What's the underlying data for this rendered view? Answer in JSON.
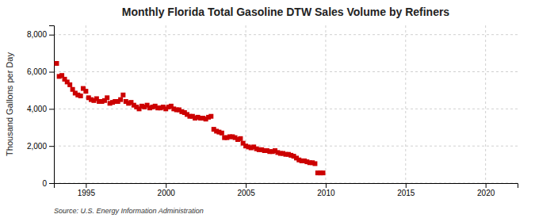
{
  "chart_data": {
    "type": "scatter",
    "title": "Monthly Florida Total Gasoline DTW Sales Volume by Refiners",
    "ylabel": "Thousand Gallons per Day",
    "annotations": [
      "Source: U.S. Energy Information Administration"
    ],
    "color": "#cc0000",
    "marker": "square",
    "grid": true,
    "xlim": [
      1993.0,
      2022.0
    ],
    "ylim": [
      0,
      8500
    ],
    "xticks": [
      1995,
      2000,
      2005,
      2010,
      2015,
      2020
    ],
    "yticks": [
      0,
      {
        "value": 2000,
        "label": "2,000"
      },
      {
        "value": 4000,
        "label": "4,000"
      },
      {
        "value": 6000,
        "label": "6,000"
      },
      {
        "value": 8000,
        "label": "8,000"
      }
    ],
    "x": [
      1993.17,
      1993.33,
      1993.5,
      1993.67,
      1993.83,
      1994.0,
      1994.17,
      1994.33,
      1994.5,
      1994.67,
      1994.83,
      1995.0,
      1995.17,
      1995.33,
      1995.5,
      1995.67,
      1995.83,
      1996.0,
      1996.17,
      1996.33,
      1996.5,
      1996.67,
      1996.83,
      1997.0,
      1997.17,
      1997.33,
      1997.5,
      1997.67,
      1997.83,
      1998.0,
      1998.17,
      1998.33,
      1998.5,
      1998.67,
      1998.83,
      1999.0,
      1999.17,
      1999.33,
      1999.5,
      1999.67,
      1999.83,
      2000.0,
      2000.17,
      2000.33,
      2000.5,
      2000.67,
      2000.83,
      2001.0,
      2001.17,
      2001.33,
      2001.5,
      2001.67,
      2001.83,
      2002.0,
      2002.17,
      2002.33,
      2002.5,
      2002.67,
      2002.83,
      2003.0,
      2003.17,
      2003.33,
      2003.5,
      2003.67,
      2003.83,
      2004.0,
      2004.17,
      2004.33,
      2004.5,
      2004.67,
      2004.83,
      2005.0,
      2005.17,
      2005.33,
      2005.5,
      2005.67,
      2005.83,
      2006.0,
      2006.17,
      2006.33,
      2006.5,
      2006.67,
      2006.83,
      2007.0,
      2007.17,
      2007.33,
      2007.5,
      2007.67,
      2007.83,
      2008.0,
      2008.17,
      2008.33,
      2008.5,
      2008.67,
      2008.83,
      2009.0,
      2009.17,
      2009.33,
      2009.5,
      2009.67,
      2009.83
    ],
    "values": [
      6450,
      5750,
      5800,
      5600,
      5450,
      5300,
      5050,
      4850,
      4750,
      4700,
      5100,
      4950,
      4600,
      4500,
      4450,
      4550,
      4400,
      4400,
      4450,
      4600,
      4300,
      4350,
      4400,
      4400,
      4500,
      4750,
      4400,
      4300,
      4350,
      4200,
      4100,
      4000,
      4150,
      4100,
      4200,
      4050,
      4100,
      4150,
      4050,
      4050,
      4100,
      4000,
      4100,
      4150,
      4000,
      3950,
      3950,
      3850,
      3800,
      3700,
      3600,
      3600,
      3500,
      3550,
      3500,
      3500,
      3450,
      3550,
      3600,
      2900,
      2800,
      2750,
      2700,
      2450,
      2450,
      2500,
      2500,
      2450,
      2350,
      2400,
      2150,
      2000,
      1950,
      1900,
      1950,
      1850,
      1800,
      1800,
      1750,
      1750,
      1700,
      1700,
      1750,
      1650,
      1600,
      1600,
      1550,
      1550,
      1500,
      1450,
      1350,
      1250,
      1200,
      1200,
      1150,
      1100,
      1100,
      1050,
      550,
      550,
      550
    ]
  }
}
